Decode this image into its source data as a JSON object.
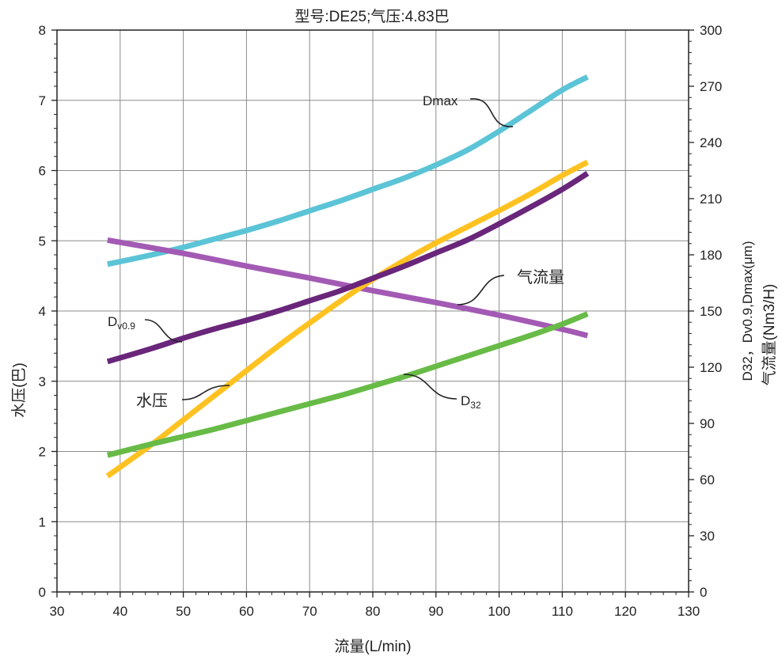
{
  "chart_data": {
    "type": "line",
    "title": "型号:DE25;气压:4.83巴",
    "xlabel": "流量(L/min)",
    "ylabel_left": "水压(巴)",
    "ylabel_right_line1": "D32，Dv0.9,Dmax(μm)",
    "ylabel_right_line2": "气流量(Nm3/H)",
    "xlim": [
      30,
      130
    ],
    "ylim_left": [
      0,
      8
    ],
    "ylim_right": [
      0,
      300
    ],
    "x_ticks": [
      "30",
      "40",
      "50",
      "60",
      "70",
      "80",
      "90",
      "100",
      "110",
      "120",
      "130"
    ],
    "y_left_ticks": [
      "0",
      "1",
      "2",
      "3",
      "4",
      "5",
      "6",
      "7",
      "8"
    ],
    "y_right_ticks": [
      "0",
      "30",
      "60",
      "90",
      "120",
      "150",
      "180",
      "210",
      "240",
      "270",
      "300"
    ],
    "grid": true,
    "series": [
      {
        "name": "Dmax",
        "axis": "right",
        "color": "#5bc4d6",
        "x": [
          38,
          45,
          50,
          55,
          60,
          65,
          70,
          75,
          80,
          85,
          90,
          95,
          100,
          105,
          110,
          114
        ],
        "y": [
          175,
          180,
          184,
          188.5,
          193,
          198,
          203.5,
          209,
          215,
          221,
          228,
          236,
          246,
          257,
          268,
          275
        ]
      },
      {
        "name": "气流量",
        "axis": "left",
        "color": "#a35ab4",
        "x": [
          38,
          50,
          60,
          70,
          80,
          90,
          100,
          110,
          114
        ],
        "y": [
          5.01,
          4.82,
          4.64,
          4.47,
          4.29,
          4.12,
          3.94,
          3.74,
          3.65
        ]
      },
      {
        "name": "水压",
        "axis": "left",
        "color": "#ffc221",
        "x": [
          38,
          45,
          50,
          55,
          60,
          65,
          70,
          75,
          80,
          85,
          90,
          95,
          100,
          105,
          110,
          114
        ],
        "y": [
          1.65,
          2.1,
          2.45,
          2.8,
          3.15,
          3.5,
          3.83,
          4.15,
          4.45,
          4.72,
          4.97,
          5.2,
          5.43,
          5.67,
          5.93,
          6.12
        ]
      },
      {
        "name": "Dv0.9",
        "axis": "right",
        "color": "#69267a",
        "x": [
          38,
          45,
          50,
          55,
          60,
          65,
          70,
          75,
          80,
          85,
          90,
          95,
          100,
          105,
          110,
          114
        ],
        "y": [
          123,
          130,
          135.5,
          140.5,
          145,
          150,
          155.5,
          161,
          167.5,
          174,
          181,
          188,
          196.5,
          205.5,
          215,
          223.5
        ]
      },
      {
        "name": "D32",
        "axis": "right",
        "color": "#67bb46",
        "x": [
          38,
          45,
          50,
          55,
          60,
          65,
          70,
          75,
          80,
          85,
          90,
          95,
          100,
          105,
          110,
          114
        ],
        "y": [
          73,
          79,
          83,
          87,
          91.5,
          96,
          100.5,
          105,
          110,
          115,
          120.5,
          126,
          131.5,
          137,
          143,
          148.5
        ]
      }
    ],
    "annotations": {
      "dmax": "Dmax",
      "airflow": "气流量",
      "dv_main": "D",
      "dv_sub": "v0.9",
      "water": "水压",
      "d32_main": "D",
      "d32_sub": "32"
    }
  }
}
